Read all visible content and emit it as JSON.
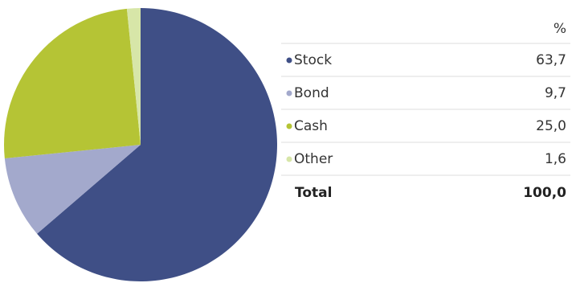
{
  "chart_data": {
    "type": "pie",
    "header": "%",
    "categories": [
      "Stock",
      "Bond",
      "Cash",
      "Other"
    ],
    "values": [
      63.7,
      9.7,
      25.0,
      1.6
    ],
    "value_labels": [
      "63,7",
      "9,7",
      "25,0",
      "1,6"
    ],
    "colors": [
      "#3f4f86",
      "#a3a9cc",
      "#b5c435",
      "#d7e6a8"
    ],
    "total": {
      "label": "Total",
      "value": 100,
      "value_label": "100,0"
    }
  }
}
